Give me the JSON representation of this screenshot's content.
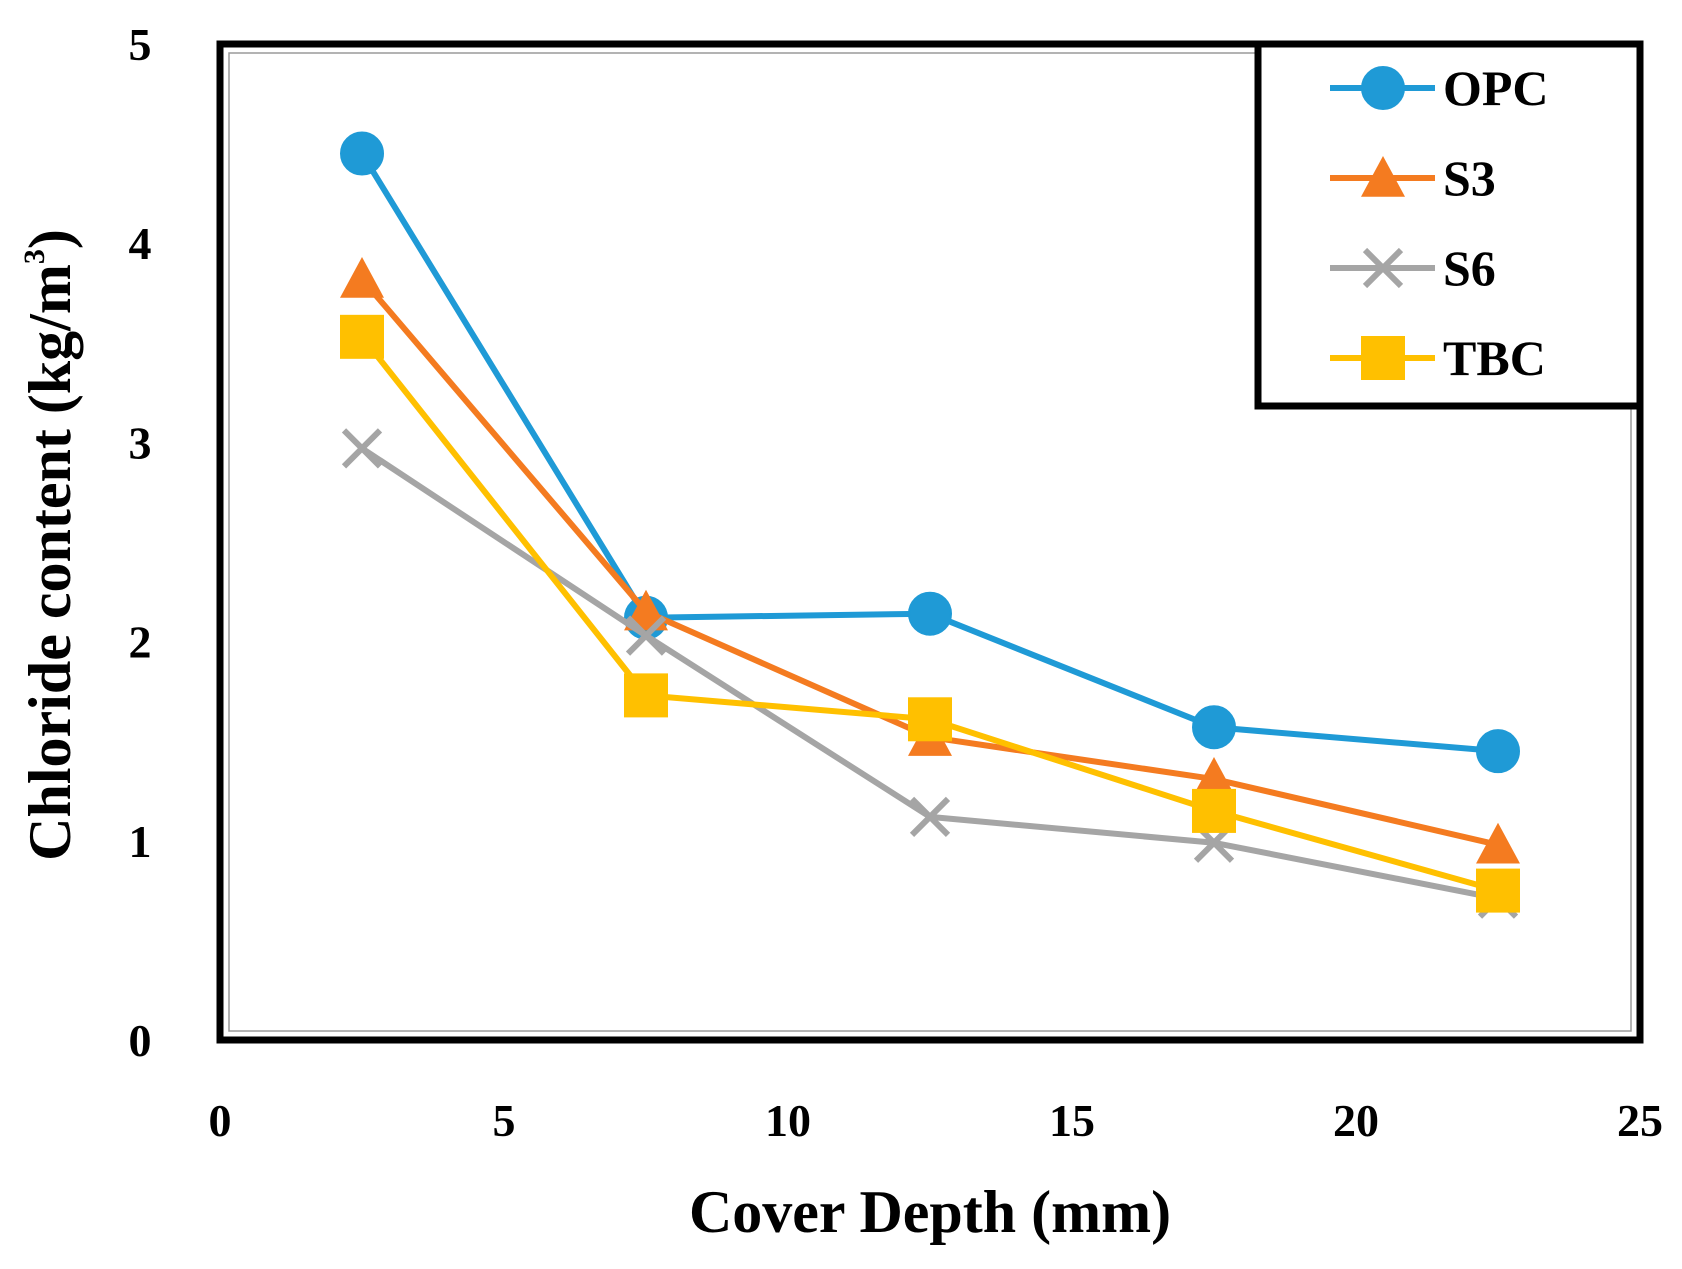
{
  "chart_data": {
    "type": "line",
    "title": "",
    "xlabel": "Cover Depth (mm)",
    "ylabel": "Chloride content (kg/m",
    "ylabel_sup": "3",
    "ylabel_close": ")",
    "xlim": [
      0,
      25
    ],
    "ylim": [
      0,
      5
    ],
    "xticks": [
      0,
      5,
      10,
      15,
      20,
      25
    ],
    "yticks": [
      0,
      1,
      2,
      3,
      4,
      5
    ],
    "grid": false,
    "legend_position": "top-right",
    "series": [
      {
        "name": "OPC",
        "color": "#1f9ad6",
        "marker": "circle",
        "x": [
          2.5,
          7.5,
          12.5,
          17.5,
          22.5
        ],
        "values": [
          4.45,
          2.12,
          2.14,
          1.57,
          1.45
        ]
      },
      {
        "name": "S3",
        "color": "#f47b20",
        "marker": "triangle",
        "x": [
          2.5,
          7.5,
          12.5,
          17.5,
          22.5
        ],
        "values": [
          3.82,
          2.15,
          1.52,
          1.31,
          0.98
        ]
      },
      {
        "name": "S6",
        "color": "#a5a5a5",
        "marker": "x",
        "x": [
          2.5,
          7.5,
          12.5,
          17.5,
          22.5
        ],
        "values": [
          2.97,
          2.03,
          1.12,
          0.99,
          0.71
        ]
      },
      {
        "name": "TBC",
        "color": "#ffc000",
        "marker": "square",
        "x": [
          2.5,
          7.5,
          12.5,
          17.5,
          22.5
        ],
        "values": [
          3.53,
          1.73,
          1.61,
          1.15,
          0.75
        ]
      }
    ]
  }
}
